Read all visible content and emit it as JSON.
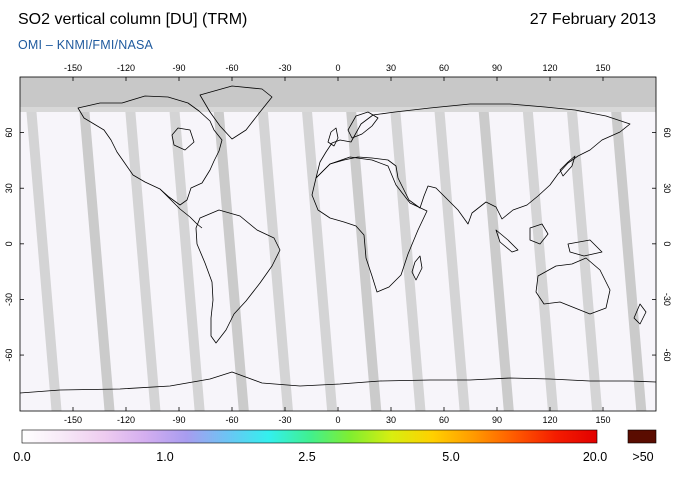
{
  "header": {
    "title": "SO2 vertical column [DU] (TRM)",
    "date": "27 February 2013",
    "credit": "OMI  –  KNMI/FMI/NASA"
  },
  "map": {
    "projection": "equirectangular",
    "lon_ticks": [
      "-150",
      "-120",
      "-90",
      "-60",
      "-30",
      "0",
      "30",
      "60",
      "90",
      "120",
      "150"
    ],
    "lat_ticks": [
      "60",
      "30",
      "0",
      "-30",
      "-60"
    ],
    "background_color": "#f7f5fa",
    "nodata_color": "#c8c8c8",
    "orbit_swath_color": "#c8c8c8",
    "coastline_color": "#000000"
  },
  "colorbar": {
    "labels": [
      "0.0",
      "1.0",
      "2.5",
      "5.0",
      "20.0",
      ">50"
    ],
    "colors": [
      "#ffffff",
      "#f7e9f7",
      "#eeccf0",
      "#d4aef0",
      "#a89cf0",
      "#6cc4f4",
      "#33f0ee",
      "#40f090",
      "#80ee30",
      "#d8ee10",
      "#ffd000",
      "#ff9a00",
      "#ff5a00",
      "#f41c00",
      "#e20000"
    ],
    "overflow_color": "#5a0c00"
  }
}
